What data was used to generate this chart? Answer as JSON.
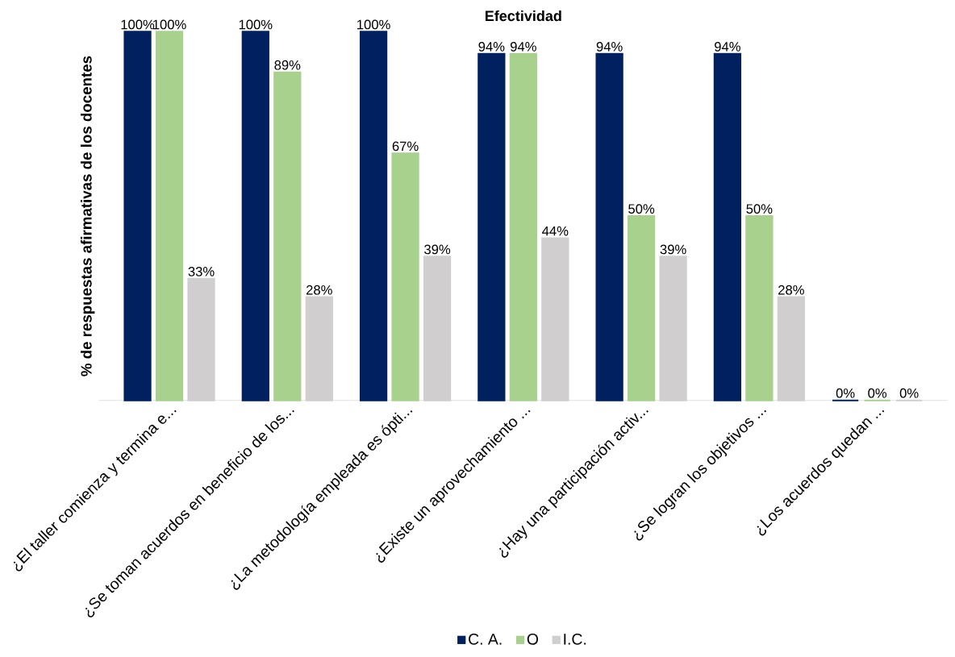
{
  "chart_data": {
    "type": "bar",
    "title": "Efectividad",
    "ylabel": "% de respuestas afirmativas de los docentes",
    "categories": [
      "¿El taller comienza y termina e...",
      "¿Se toman acuerdos en beneficio de los...",
      "¿La metodología empleada es ópti...",
      "¿Existe un aprovechamiento ...",
      "¿Hay una participación activ...",
      "¿Se logran los objetivos ...",
      "¿Los acuerdos quedan ..."
    ],
    "series": [
      {
        "name": "C. A.",
        "color": "#002060",
        "values": [
          100,
          100,
          100,
          94,
          94,
          94,
          0
        ],
        "value_labels": [
          "100%",
          "100%",
          "100%",
          "94%",
          "94%",
          "94%",
          "0%"
        ]
      },
      {
        "name": "O",
        "color": "#a9d18e",
        "values": [
          100,
          89,
          67,
          94,
          50,
          50,
          0
        ],
        "value_labels": [
          "100%",
          "89%",
          "67%",
          "94%",
          "50%",
          "50%",
          "0%"
        ]
      },
      {
        "name": "I.C.",
        "color": "#d0cece",
        "values": [
          33,
          28,
          39,
          44,
          39,
          28,
          0
        ],
        "value_labels": [
          "33%",
          "28%",
          "39%",
          "44%",
          "39%",
          "28%",
          "0%"
        ]
      }
    ],
    "legend": "bottom"
  }
}
